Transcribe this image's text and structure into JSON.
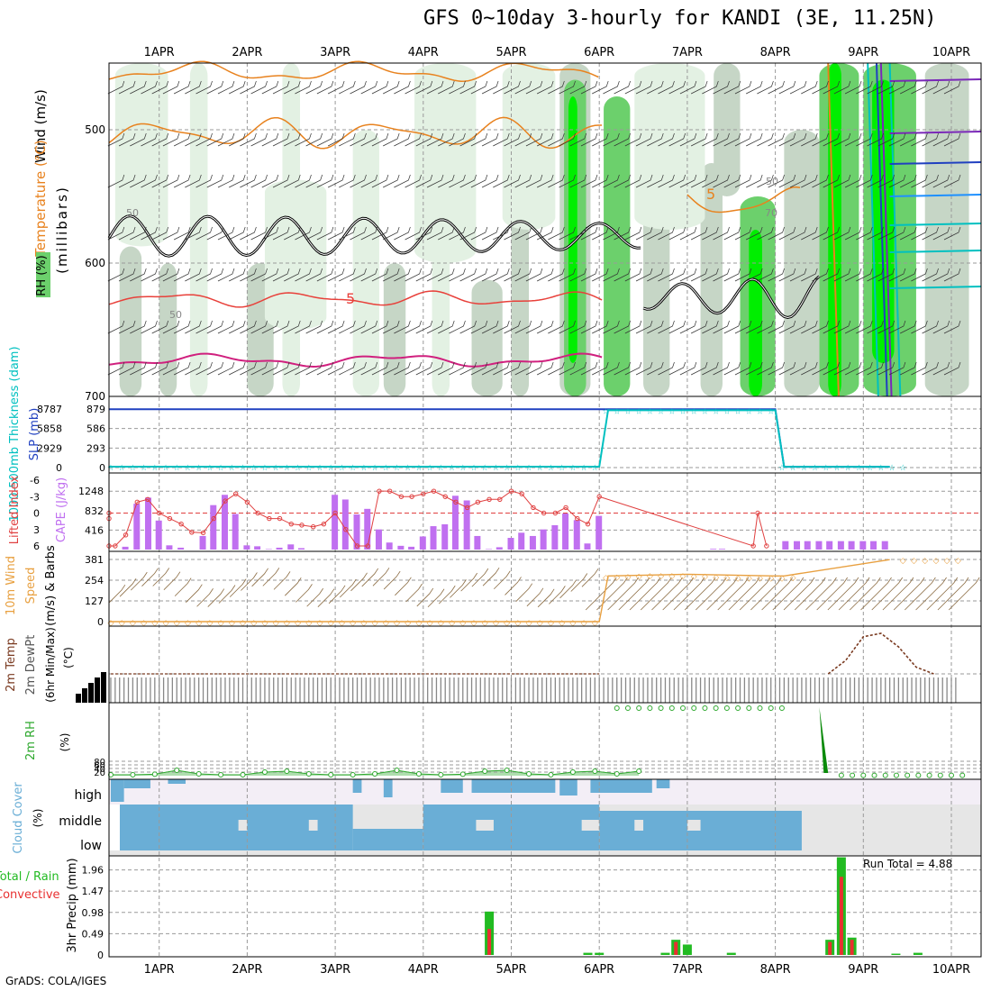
{
  "header": {
    "title": "GFS 0~10day 3-hourly for KANDI (3E, 11.25N)"
  },
  "footer": {
    "credit": "GrADS: COLA/IGES"
  },
  "colors": {
    "grid": "#9a9a9a",
    "rh_light": "#e3f1e3",
    "rh_mid": "#c6d6c6",
    "rh_dark": "#a8baa8",
    "rh_green": "#6cd06c",
    "rh_bright": "#00ee00",
    "temp_orange": "#e8821e",
    "temp_red": "#e8403a",
    "temp_magenta": "#d0207e",
    "wind_black": "#000000",
    "thickness": "#00c0c0",
    "slp": "#2040c0",
    "cape": "#c070f0",
    "lifted": "#e04040",
    "wind10": "#e8a040",
    "barb_brown": "#8a6a40",
    "rh2m": "#2ea82e",
    "cloud": "#6aaed6",
    "cloud_bg": "#e6e6e6",
    "precip_total": "#22bb22",
    "precip_conv": "#e83030"
  },
  "chart_data": [
    {
      "id": "upper-air",
      "type": "heatmap",
      "title": "GFS 0~10day 3-hourly for KANDI (3E, 11.25N)",
      "x_ticks": [
        "1APR",
        "2APR",
        "3APR",
        "4APR",
        "5APR",
        "6APR",
        "7APR",
        "8APR",
        "9APR",
        "10APR"
      ],
      "y_ticks": [
        "500",
        "600",
        "700"
      ],
      "ylabel": "(millibars)",
      "ylabel_vars": [
        "Wind (m/s)",
        "Temperature (°C)",
        "RH (%)"
      ],
      "contour_labels": [
        "5",
        "5",
        "50",
        "50",
        "70",
        "50"
      ],
      "ylim": [
        700,
        450
      ]
    },
    {
      "id": "thickness-slp",
      "type": "line",
      "ylabel": "1000-500mb Thickness (dam)",
      "ylabel2": "SLP (mb)",
      "y_ticks_left": [
        "8787",
        "5858",
        "2929",
        "0"
      ],
      "y_ticks_right": [
        "879",
        "586",
        "293",
        "0"
      ],
      "ylim": [
        0,
        879
      ],
      "x": [
        0,
        1,
        2,
        3,
        4,
        5,
        6,
        6.1,
        7,
        8,
        8.1,
        9.3
      ],
      "series": [
        {
          "name": "SLP (mb)",
          "values": [
            876,
            876,
            876,
            876,
            876,
            876,
            876,
            876,
            876,
            876,
            12,
            12
          ]
        },
        {
          "name": "1000-500mb Thickness (dam)",
          "values": [
            14,
            14,
            14,
            14,
            14,
            14,
            14,
            860,
            860,
            860,
            12,
            12
          ]
        }
      ]
    },
    {
      "id": "cape-li",
      "type": "bar",
      "ylabel": "CAPE (J/kg)",
      "ylabel2": "Lifted Index",
      "y_ticks_cape": [
        "1248",
        "832",
        "416"
      ],
      "y_ticks_li": [
        "-6",
        "-3",
        "0",
        "3",
        "6"
      ],
      "cape_ylim": [
        0,
        1560
      ],
      "cape_times": [
        0.62,
        0.75,
        0.88,
        1.0,
        1.12,
        1.25,
        1.37,
        1.5,
        1.62,
        1.75,
        1.87,
        2.0,
        2.12,
        2.25,
        2.37,
        2.5,
        2.62,
        2.75,
        2.87,
        3.0,
        3.12,
        3.25,
        3.37,
        3.5,
        3.62,
        3.75,
        3.87,
        4.0,
        4.12,
        4.25,
        4.37,
        4.5,
        4.62,
        4.75,
        4.87,
        5.0,
        5.12,
        5.25,
        5.37,
        5.5,
        5.62,
        5.75,
        5.87,
        6.0,
        7.3,
        7.4,
        8.12,
        8.25,
        8.37,
        8.5,
        8.62,
        8.75,
        8.87,
        9.0,
        9.12,
        9.25
      ],
      "cape_values": [
        60,
        980,
        1110,
        620,
        90,
        40,
        0,
        290,
        950,
        1170,
        760,
        90,
        70,
        10,
        40,
        110,
        30,
        0,
        0,
        1170,
        1070,
        750,
        870,
        430,
        150,
        80,
        60,
        280,
        500,
        540,
        1150,
        1050,
        290,
        10,
        50,
        250,
        360,
        290,
        430,
        520,
        770,
        630,
        130,
        720,
        15,
        15,
        180,
        180,
        180,
        180,
        180,
        180,
        180,
        180,
        180,
        180
      ],
      "li_times": [
        0,
        0.12,
        0.25,
        0.5,
        0.62,
        0.75,
        0.87,
        1.0,
        1.12,
        1.25,
        1.37,
        1.5,
        1.62,
        1.75,
        1.87,
        2.0,
        2.12,
        2.25,
        2.37,
        2.5,
        2.62,
        2.75,
        2.87,
        3.0,
        3.12,
        3.25,
        3.37,
        3.5,
        3.62,
        3.75,
        3.87,
        4.0,
        4.12,
        4.25,
        4.37,
        4.5,
        4.62,
        4.75,
        4.87,
        5.0,
        5.12,
        5.25,
        5.37,
        5.5,
        5.62,
        5.75,
        5.87,
        6.0,
        7.75,
        7.8,
        7.9
      ],
      "li_values": [
        0,
        1,
        6,
        6,
        4,
        -2,
        -2.5,
        0,
        1,
        2,
        3.5,
        3.6,
        1,
        -2.2,
        -3.5,
        -2,
        0,
        1,
        1,
        2,
        2.2,
        2.5,
        2,
        0,
        3,
        6,
        6,
        -4,
        -4,
        -3,
        -3,
        -3.5,
        -4,
        -3,
        -2,
        -1,
        -2,
        -2.5,
        -2.5,
        -4,
        -3.5,
        -1,
        0,
        0,
        -1,
        1,
        2,
        -3,
        6,
        0,
        6
      ]
    },
    {
      "id": "wind10m",
      "type": "line",
      "ylabel": "10m Wind Speed (m/s) & Barbs",
      "y_ticks": [
        "381",
        "254",
        "127",
        "0"
      ],
      "ylim": [
        0,
        381
      ],
      "x": [
        0,
        1,
        2,
        3,
        4,
        5,
        6,
        6.1,
        7,
        8,
        8.1,
        9.3
      ],
      "series": [
        {
          "name": "10m Wind Speed",
          "values": [
            0,
            0,
            0,
            0,
            0,
            0,
            0,
            280,
            290,
            280,
            280,
            380
          ]
        }
      ]
    },
    {
      "id": "temp2m",
      "type": "line",
      "ylabel": "2m Temp 2m DewPt (6hr Min/Max) (°C)",
      "series": [
        {
          "name": "2m Temp",
          "x": [
            0,
            6
          ],
          "values": [
            0,
            0
          ]
        },
        {
          "name": "2m Temp late",
          "x": [
            8.6,
            8.8,
            9.0,
            9.2,
            9.4,
            9.6,
            9.8
          ],
          "values": [
            0,
            20,
            55,
            60,
            40,
            10,
            0
          ]
        }
      ]
    },
    {
      "id": "rh2m",
      "type": "area",
      "ylabel": "2m RH (%)",
      "y_ticks": [
        "80",
        "60",
        "40",
        "20"
      ],
      "ylim": [
        0,
        100
      ],
      "x": [
        0,
        0.25,
        0.5,
        0.75,
        1.0,
        1.25,
        1.5,
        1.75,
        2.0,
        2.25,
        2.5,
        2.75,
        3.0,
        3.25,
        3.5,
        3.75,
        4.0,
        4.25,
        4.5,
        4.75,
        5.0,
        5.25,
        5.5,
        5.75,
        6.0
      ],
      "series": [
        {
          "name": "2m RH",
          "values": [
            5,
            5,
            8,
            30,
            10,
            5,
            5,
            20,
            25,
            10,
            5,
            5,
            10,
            30,
            10,
            5,
            8,
            25,
            30,
            10,
            5,
            20,
            25,
            10,
            25
          ]
        }
      ]
    },
    {
      "id": "cloud",
      "type": "area",
      "ylabel": "Cloud Cover (%)",
      "levels": [
        "high",
        "middle",
        "low"
      ]
    },
    {
      "id": "precip",
      "type": "bar",
      "ylabel": "3hr Precip (mm)",
      "ylabel_left": [
        "Total / Rain",
        "Convective"
      ],
      "y_ticks": [
        "1.96",
        "1.47",
        "0.98",
        "0.49",
        "0"
      ],
      "ylim": [
        0,
        2.2
      ],
      "annotation": "Run Total = 4.88",
      "times": [
        4.75,
        5.87,
        6.0,
        6.75,
        6.87,
        7.0,
        7.5,
        8.62,
        8.75,
        8.87,
        9.37,
        9.62
      ],
      "total": [
        1.0,
        0.05,
        0.05,
        0.05,
        0.35,
        0.24,
        0.05,
        0.35,
        2.25,
        0.4,
        0.03,
        0.05
      ],
      "convective": [
        0.6,
        0.0,
        0.0,
        0.0,
        0.3,
        0.0,
        0.0,
        0.3,
        1.8,
        0.35,
        0.0,
        0.0
      ]
    }
  ]
}
